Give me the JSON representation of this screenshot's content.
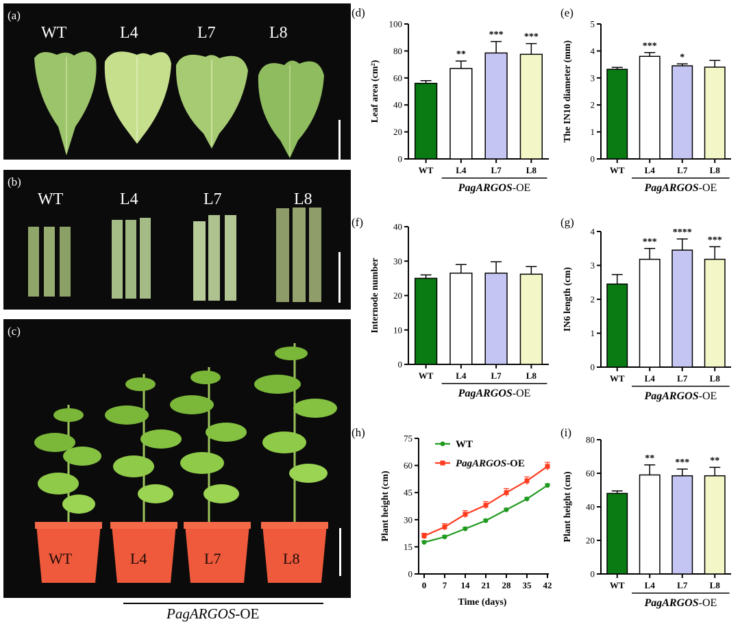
{
  "photos": {
    "a": {
      "label": "(a)",
      "genotypes": [
        "WT",
        "L4",
        "L7",
        "L8"
      ]
    },
    "b": {
      "label": "(b)",
      "genotypes": [
        "WT",
        "L4",
        "L7",
        "L8"
      ]
    },
    "c": {
      "label": "(c)",
      "pot_labels": [
        "WT",
        "L4",
        "L7",
        "L8"
      ]
    },
    "bottom_label_prefix": "PagARGOS",
    "bottom_label_suffix": "-OE"
  },
  "colors": {
    "WT": "#0a7a12",
    "L4": "#ffffff",
    "L7": "#c5c5f4",
    "L8": "#f3f6c6",
    "line_wt": "#1f9a1f",
    "line_oe": "#ff3b1f"
  },
  "chart_data": [
    {
      "id": "d",
      "panel_label": "(d)",
      "type": "bar",
      "categories": [
        "WT",
        "L4",
        "L7",
        "L8"
      ],
      "values": [
        56,
        67,
        78.5,
        77.5
      ],
      "errors": [
        2,
        5.5,
        8.5,
        8
      ],
      "significance": [
        "",
        "**",
        "***",
        "***"
      ],
      "ylabel": "Leaf area (cm²)",
      "ylim": [
        0,
        100
      ],
      "yticks": [
        0,
        20,
        40,
        60,
        80,
        100
      ],
      "group_label": "PagARGOS-OE"
    },
    {
      "id": "e",
      "panel_label": "(e)",
      "type": "bar",
      "categories": [
        "WT",
        "L4",
        "L7",
        "L8"
      ],
      "values": [
        3.32,
        3.8,
        3.45,
        3.4
      ],
      "errors": [
        0.07,
        0.14,
        0.07,
        0.25
      ],
      "significance": [
        "",
        "***",
        "*",
        ""
      ],
      "ylabel": "The IN10  diameter (mm)",
      "ylim": [
        0,
        5
      ],
      "yticks": [
        0,
        1,
        2,
        3,
        4,
        5
      ],
      "group_label": "PagARGOS-OE"
    },
    {
      "id": "f",
      "panel_label": "(f)",
      "type": "bar",
      "categories": [
        "WT",
        "L4",
        "L7",
        "L8"
      ],
      "values": [
        25,
        26.5,
        26.5,
        26.2
      ],
      "errors": [
        1,
        2.5,
        3.3,
        2.2
      ],
      "significance": [
        "",
        "",
        "",
        ""
      ],
      "ylabel": "Internode number",
      "ylim": [
        0,
        40
      ],
      "yticks": [
        0,
        10,
        20,
        30,
        40
      ],
      "group_label": "PagARGOS-OE"
    },
    {
      "id": "g",
      "panel_label": "(g)",
      "type": "bar",
      "categories": [
        "WT",
        "L4",
        "L7",
        "L8"
      ],
      "values": [
        2.45,
        3.18,
        3.45,
        3.18
      ],
      "errors": [
        0.28,
        0.32,
        0.33,
        0.37
      ],
      "significance": [
        "",
        "***",
        "****",
        "***"
      ],
      "ylabel": "IN6 length (cm)",
      "ylim": [
        0,
        4
      ],
      "yticks": [
        0,
        1,
        2,
        3,
        4
      ],
      "group_label": "PagARGOS-OE"
    },
    {
      "id": "h",
      "panel_label": "(h)",
      "type": "line",
      "x": [
        0,
        7,
        14,
        21,
        28,
        35,
        42
      ],
      "series": [
        {
          "name": "WT",
          "values": [
            17.5,
            20.5,
            25,
            29.5,
            35.5,
            41.5,
            49
          ],
          "errors": [
            0.8,
            0.8,
            0.8,
            0.8,
            0.8,
            0.8,
            0.8
          ]
        },
        {
          "name": "PagARGOS-OE",
          "values": [
            21,
            26,
            33,
            38,
            45,
            51.5,
            59.5
          ],
          "errors": [
            1.5,
            1.8,
            2,
            2,
            2.2,
            2.2,
            2.2
          ]
        }
      ],
      "legend_wt": "WT",
      "legend_oe_prefix": "PagARGOS",
      "legend_oe_suffix": "-OE",
      "xlabel": "Time (days)",
      "ylabel": "Plant height (cm)",
      "xlim": [
        0,
        42
      ],
      "ylim": [
        0,
        75
      ],
      "xticks": [
        0,
        7,
        14,
        21,
        28,
        35,
        42
      ],
      "yticks": [
        0,
        15,
        30,
        45,
        60,
        75
      ]
    },
    {
      "id": "i",
      "panel_label": "(i)",
      "type": "bar",
      "categories": [
        "WT",
        "L4",
        "L7",
        "L8"
      ],
      "values": [
        48,
        59,
        58.5,
        58.5
      ],
      "errors": [
        1.5,
        6,
        4,
        5
      ],
      "significance": [
        "",
        "**",
        "***",
        "**"
      ],
      "ylabel": "Plant height (cm)",
      "ylim": [
        0,
        80
      ],
      "yticks": [
        0,
        20,
        40,
        60,
        80
      ],
      "group_label": "PagARGOS-OE"
    }
  ]
}
